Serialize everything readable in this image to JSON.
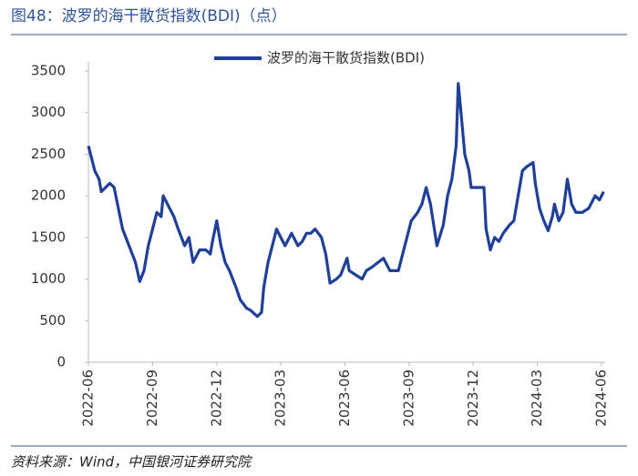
{
  "chart_data": {
    "type": "line",
    "title": "图48：波罗的海干散货指数(BDI)（点）",
    "source": "资料来源：Wind，中国银河证券研究院",
    "legend": "top",
    "series": [
      {
        "name": "波罗的海干散货指数(BDI)",
        "color": "#1f3f99",
        "x": [
          0,
          0.3,
          0.5,
          0.6,
          1.0,
          1.2,
          1.6,
          1.9,
          2.2,
          2.4,
          2.6,
          2.8,
          3.0,
          3.2,
          3.4,
          3.5,
          3.8,
          4.0,
          4.2,
          4.5,
          4.7,
          4.9,
          5.2,
          5.5,
          5.7,
          5.8,
          6.0,
          6.2,
          6.4,
          6.6,
          6.9,
          7.1,
          7.4,
          7.6,
          7.9,
          8.1,
          8.2,
          8.4,
          8.7,
          8.8,
          9.0,
          9.2,
          9.5,
          9.8,
          10.0,
          10.2,
          10.4,
          10.6,
          10.9,
          11.1,
          11.3,
          11.6,
          11.8,
          12.1,
          12.2,
          12.5,
          12.8,
          13.0,
          13.3,
          13.8,
          14.1,
          14.5,
          14.7,
          14.9,
          15.1,
          15.4,
          15.6,
          15.8,
          16.0,
          16.3,
          16.6,
          16.8,
          17.0,
          17.2,
          17.3,
          17.5,
          17.6,
          17.8,
          17.9,
          18.2,
          18.5,
          18.6,
          18.8,
          19.0,
          19.2,
          19.4,
          19.7,
          19.9,
          20.1,
          20.3,
          20.5,
          20.8,
          20.9,
          21.1,
          21.3,
          21.5,
          21.7,
          21.8,
          22.0,
          22.2,
          22.4,
          22.6,
          22.8,
          23.1,
          23.4,
          23.7,
          23.9,
          24.1
        ],
        "values": [
          2600,
          2300,
          2200,
          2050,
          2150,
          2100,
          1600,
          1400,
          1200,
          970,
          1100,
          1400,
          1600,
          1800,
          1750,
          2000,
          1850,
          1750,
          1600,
          1400,
          1500,
          1200,
          1350,
          1350,
          1300,
          1450,
          1700,
          1400,
          1200,
          1100,
          900,
          750,
          650,
          620,
          550,
          600,
          900,
          1200,
          1500,
          1600,
          1500,
          1400,
          1550,
          1400,
          1450,
          1550,
          1550,
          1600,
          1500,
          1300,
          950,
          1000,
          1050,
          1250,
          1100,
          1050,
          1000,
          1100,
          1150,
          1250,
          1100,
          1100,
          1300,
          1500,
          1700,
          1800,
          1900,
          2100,
          1900,
          1400,
          1650,
          2000,
          2200,
          2600,
          3350,
          2800,
          2500,
          2300,
          2100,
          2100,
          2100,
          1600,
          1350,
          1500,
          1450,
          1550,
          1650,
          1700,
          2000,
          2300,
          2350,
          2400,
          2150,
          1850,
          1700,
          1580,
          1750,
          1900,
          1700,
          1800,
          2200,
          1900,
          1800,
          1800,
          1850,
          2000,
          1950,
          2050
        ]
      }
    ],
    "xlim": [
      0,
      24
    ],
    "xticks": [
      {
        "value": 0,
        "label": "2022-06"
      },
      {
        "value": 3,
        "label": "2022-09"
      },
      {
        "value": 6,
        "label": "2022-12"
      },
      {
        "value": 9,
        "label": "2023-03"
      },
      {
        "value": 12,
        "label": "2023-06"
      },
      {
        "value": 15,
        "label": "2023-09"
      },
      {
        "value": 18,
        "label": "2023-12"
      },
      {
        "value": 21,
        "label": "2024-03"
      },
      {
        "value": 24,
        "label": "2024-06"
      }
    ],
    "ylim": [
      0,
      3500
    ],
    "yticks": [
      0,
      500,
      1000,
      1500,
      2000,
      2500,
      3000,
      3500
    ],
    "grid": false
  }
}
